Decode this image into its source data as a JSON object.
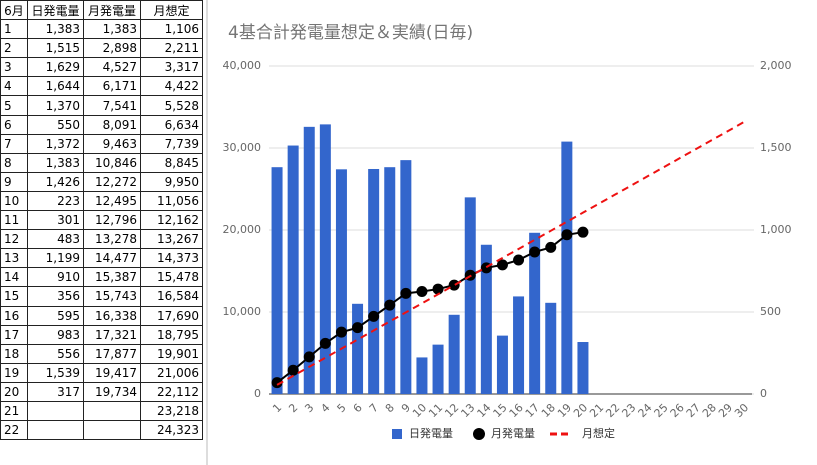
{
  "table": {
    "header": [
      "6月",
      "日発電量",
      "月発電量",
      "月想定"
    ],
    "rows": [
      [
        "1",
        "1,383",
        "1,383",
        "1,106"
      ],
      [
        "2",
        "1,515",
        "2,898",
        "2,211"
      ],
      [
        "3",
        "1,629",
        "4,527",
        "3,317"
      ],
      [
        "4",
        "1,644",
        "6,171",
        "4,422"
      ],
      [
        "5",
        "1,370",
        "7,541",
        "5,528"
      ],
      [
        "6",
        "550",
        "8,091",
        "6,634"
      ],
      [
        "7",
        "1,372",
        "9,463",
        "7,739"
      ],
      [
        "8",
        "1,383",
        "10,846",
        "8,845"
      ],
      [
        "9",
        "1,426",
        "12,272",
        "9,950"
      ],
      [
        "10",
        "223",
        "12,495",
        "11,056"
      ],
      [
        "11",
        "301",
        "12,796",
        "12,162"
      ],
      [
        "12",
        "483",
        "13,278",
        "13,267"
      ],
      [
        "13",
        "1,199",
        "14,477",
        "14,373"
      ],
      [
        "14",
        "910",
        "15,387",
        "15,478"
      ],
      [
        "15",
        "356",
        "15,743",
        "16,584"
      ],
      [
        "16",
        "595",
        "16,338",
        "17,690"
      ],
      [
        "17",
        "983",
        "17,321",
        "18,795"
      ],
      [
        "18",
        "556",
        "17,877",
        "19,901"
      ],
      [
        "19",
        "1,539",
        "19,417",
        "21,006"
      ],
      [
        "20",
        "317",
        "19,734",
        "22,112"
      ],
      [
        "21",
        "",
        "",
        "23,218"
      ],
      [
        "22",
        "",
        "",
        "24,323"
      ]
    ]
  },
  "chart_data": {
    "type": "combo",
    "title": "4基合計発電量想定＆実績(日毎)",
    "categories": [
      "1",
      "2",
      "3",
      "4",
      "5",
      "6",
      "7",
      "8",
      "9",
      "10",
      "11",
      "12",
      "13",
      "14",
      "15",
      "16",
      "17",
      "18",
      "19",
      "20",
      "21",
      "22",
      "23",
      "24",
      "25",
      "26",
      "27",
      "28",
      "29",
      "30"
    ],
    "series": [
      {
        "name": "日発電量",
        "type": "bar",
        "axis": "y2",
        "color": "#3366cc",
        "values": [
          1383,
          1515,
          1629,
          1644,
          1370,
          550,
          1372,
          1383,
          1426,
          223,
          301,
          483,
          1199,
          910,
          356,
          595,
          983,
          556,
          1539,
          317,
          null,
          null,
          null,
          null,
          null,
          null,
          null,
          null,
          null,
          null
        ]
      },
      {
        "name": "月発電量",
        "type": "line",
        "color": "#000000",
        "values": [
          1383,
          2898,
          4527,
          6171,
          7541,
          8091,
          9463,
          10846,
          12272,
          12495,
          12796,
          13278,
          14477,
          15387,
          15743,
          16338,
          17321,
          17877,
          19417,
          19734,
          null,
          null,
          null,
          null,
          null,
          null,
          null,
          null,
          null,
          null
        ]
      },
      {
        "name": "月想定",
        "type": "dashed",
        "color": "#ee1111",
        "values": [
          1106,
          2211,
          3317,
          4422,
          5528,
          6634,
          7739,
          8845,
          9950,
          11056,
          12162,
          13267,
          14373,
          15478,
          16584,
          17690,
          18795,
          19901,
          21006,
          22112,
          23218,
          24323,
          25429,
          26534,
          27640,
          28746,
          29851,
          30957,
          32062,
          33168
        ]
      }
    ],
    "ylim": [
      0,
      40000
    ],
    "yticks": [
      0,
      {
        "value": 10000,
        "label": "10,000"
      },
      {
        "value": 20000,
        "label": "20,000"
      },
      {
        "value": 30000,
        "label": "30,000"
      },
      {
        "value": 40000,
        "label": "40,000"
      }
    ],
    "y2lim": [
      0,
      2000
    ],
    "y2ticks": [
      0,
      500,
      {
        "value": 1000,
        "label": "1,000"
      },
      {
        "value": 1500,
        "label": "1,500"
      },
      {
        "value": 2000,
        "label": "2,000"
      }
    ],
    "grid": true,
    "legend": "bottom"
  }
}
